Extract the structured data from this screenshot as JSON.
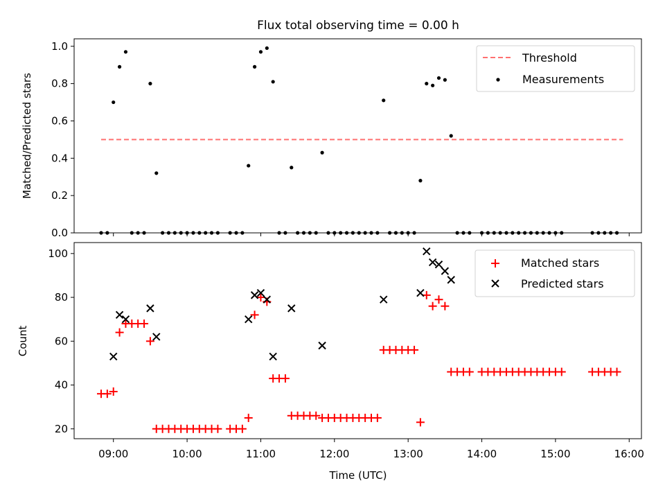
{
  "title": "Flux total observing time = 0.00 h",
  "colors": {
    "threshold": "#ff7070",
    "measurements": "#000000",
    "matched": "#ff0000",
    "predicted": "#000000"
  },
  "chart_data": [
    {
      "type": "scatter",
      "ylabel": "Matched/Predicted stars",
      "xlim": [
        "08:28",
        "16:10"
      ],
      "ylim": [
        0,
        1.04
      ],
      "y_ticks": [
        0.0,
        0.2,
        0.4,
        0.6,
        0.8,
        1.0
      ],
      "y_tick_labels": [
        "0.0",
        "0.2",
        "0.4",
        "0.6",
        "0.8",
        "1.0"
      ],
      "x_ticks": [
        "09:00",
        "10:00",
        "11:00",
        "12:00",
        "13:00",
        "14:00",
        "15:00",
        "16:00"
      ],
      "legend_position": "top-right",
      "legend": [
        "Threshold",
        "Measurements"
      ],
      "threshold": {
        "name": "Threshold",
        "value": 0.5,
        "x_range": [
          "08:50",
          "15:55"
        ]
      },
      "measurements": {
        "name": "Measurements",
        "points": [
          [
            "08:50",
            0
          ],
          [
            "08:55",
            0
          ],
          [
            "09:00",
            0.7
          ],
          [
            "09:05",
            0.89
          ],
          [
            "09:10",
            0.97
          ],
          [
            "09:15",
            0
          ],
          [
            "09:20",
            0
          ],
          [
            "09:25",
            0
          ],
          [
            "09:30",
            0.8
          ],
          [
            "09:35",
            0.32
          ],
          [
            "09:40",
            0
          ],
          [
            "09:45",
            0
          ],
          [
            "09:50",
            0
          ],
          [
            "09:55",
            0
          ],
          [
            "10:00",
            0
          ],
          [
            "10:05",
            0
          ],
          [
            "10:10",
            0
          ],
          [
            "10:15",
            0
          ],
          [
            "10:20",
            0
          ],
          [
            "10:25",
            0
          ],
          [
            "10:35",
            0
          ],
          [
            "10:40",
            0
          ],
          [
            "10:45",
            0
          ],
          [
            "10:50",
            0.36
          ],
          [
            "10:55",
            0.89
          ],
          [
            "11:00",
            0.97
          ],
          [
            "11:05",
            0.99
          ],
          [
            "11:10",
            0.81
          ],
          [
            "11:15",
            0
          ],
          [
            "11:20",
            0
          ],
          [
            "11:25",
            0.35
          ],
          [
            "11:30",
            0
          ],
          [
            "11:35",
            0
          ],
          [
            "11:40",
            0
          ],
          [
            "11:45",
            0
          ],
          [
            "11:50",
            0.43
          ],
          [
            "11:55",
            0
          ],
          [
            "12:00",
            0
          ],
          [
            "12:05",
            0
          ],
          [
            "12:10",
            0
          ],
          [
            "12:15",
            0
          ],
          [
            "12:20",
            0
          ],
          [
            "12:25",
            0
          ],
          [
            "12:30",
            0
          ],
          [
            "12:35",
            0
          ],
          [
            "12:40",
            0.71
          ],
          [
            "12:45",
            0
          ],
          [
            "12:50",
            0
          ],
          [
            "12:55",
            0
          ],
          [
            "13:00",
            0
          ],
          [
            "13:05",
            0
          ],
          [
            "13:10",
            0.28
          ],
          [
            "13:15",
            0.8
          ],
          [
            "13:20",
            0.79
          ],
          [
            "13:25",
            0.83
          ],
          [
            "13:30",
            0.82
          ],
          [
            "13:35",
            0.52
          ],
          [
            "13:40",
            0
          ],
          [
            "13:45",
            0
          ],
          [
            "13:50",
            0
          ],
          [
            "14:00",
            0
          ],
          [
            "14:05",
            0
          ],
          [
            "14:10",
            0
          ],
          [
            "14:15",
            0
          ],
          [
            "14:20",
            0
          ],
          [
            "14:25",
            0
          ],
          [
            "14:30",
            0
          ],
          [
            "14:35",
            0
          ],
          [
            "14:40",
            0
          ],
          [
            "14:45",
            0
          ],
          [
            "14:50",
            0
          ],
          [
            "14:55",
            0
          ],
          [
            "15:00",
            0
          ],
          [
            "15:05",
            0
          ],
          [
            "15:30",
            0
          ],
          [
            "15:35",
            0
          ],
          [
            "15:40",
            0
          ],
          [
            "15:45",
            0
          ],
          [
            "15:50",
            0
          ]
        ]
      }
    },
    {
      "type": "scatter",
      "ylabel": "Count",
      "xlabel": "Time (UTC)",
      "xlim": [
        "08:28",
        "16:10"
      ],
      "ylim": [
        15.5,
        105
      ],
      "y_ticks": [
        20,
        40,
        60,
        80,
        100
      ],
      "y_tick_labels": [
        "20",
        "40",
        "60",
        "80",
        "100"
      ],
      "x_ticks": [
        "09:00",
        "10:00",
        "11:00",
        "12:00",
        "13:00",
        "14:00",
        "15:00",
        "16:00"
      ],
      "x_tick_labels": [
        "09:00",
        "10:00",
        "11:00",
        "12:00",
        "13:00",
        "14:00",
        "15:00",
        "16:00"
      ],
      "legend_position": "top-right",
      "legend": [
        "Matched stars",
        "Predicted stars"
      ],
      "series": [
        {
          "name": "Matched stars",
          "marker": "+",
          "points": [
            [
              "08:50",
              36
            ],
            [
              "08:55",
              36
            ],
            [
              "09:00",
              37
            ],
            [
              "09:05",
              64
            ],
            [
              "09:10",
              68
            ],
            [
              "09:15",
              68
            ],
            [
              "09:20",
              68
            ],
            [
              "09:25",
              68
            ],
            [
              "09:30",
              60
            ],
            [
              "09:35",
              20
            ],
            [
              "09:40",
              20
            ],
            [
              "09:45",
              20
            ],
            [
              "09:50",
              20
            ],
            [
              "09:55",
              20
            ],
            [
              "10:00",
              20
            ],
            [
              "10:05",
              20
            ],
            [
              "10:10",
              20
            ],
            [
              "10:15",
              20
            ],
            [
              "10:20",
              20
            ],
            [
              "10:25",
              20
            ],
            [
              "10:35",
              20
            ],
            [
              "10:40",
              20
            ],
            [
              "10:45",
              20
            ],
            [
              "10:50",
              25
            ],
            [
              "10:55",
              72
            ],
            [
              "11:00",
              80
            ],
            [
              "11:05",
              78
            ],
            [
              "11:10",
              43
            ],
            [
              "11:15",
              43
            ],
            [
              "11:20",
              43
            ],
            [
              "11:25",
              26
            ],
            [
              "11:30",
              26
            ],
            [
              "11:35",
              26
            ],
            [
              "11:40",
              26
            ],
            [
              "11:45",
              26
            ],
            [
              "11:50",
              25
            ],
            [
              "11:55",
              25
            ],
            [
              "12:00",
              25
            ],
            [
              "12:05",
              25
            ],
            [
              "12:10",
              25
            ],
            [
              "12:15",
              25
            ],
            [
              "12:20",
              25
            ],
            [
              "12:25",
              25
            ],
            [
              "12:30",
              25
            ],
            [
              "12:35",
              25
            ],
            [
              "12:40",
              56
            ],
            [
              "12:45",
              56
            ],
            [
              "12:50",
              56
            ],
            [
              "12:55",
              56
            ],
            [
              "13:00",
              56
            ],
            [
              "13:05",
              56
            ],
            [
              "13:10",
              23
            ],
            [
              "13:15",
              81
            ],
            [
              "13:20",
              76
            ],
            [
              "13:25",
              79
            ],
            [
              "13:30",
              76
            ],
            [
              "13:35",
              46
            ],
            [
              "13:40",
              46
            ],
            [
              "13:45",
              46
            ],
            [
              "13:50",
              46
            ],
            [
              "14:00",
              46
            ],
            [
              "14:05",
              46
            ],
            [
              "14:10",
              46
            ],
            [
              "14:15",
              46
            ],
            [
              "14:20",
              46
            ],
            [
              "14:25",
              46
            ],
            [
              "14:30",
              46
            ],
            [
              "14:35",
              46
            ],
            [
              "14:40",
              46
            ],
            [
              "14:45",
              46
            ],
            [
              "14:50",
              46
            ],
            [
              "14:55",
              46
            ],
            [
              "15:00",
              46
            ],
            [
              "15:05",
              46
            ],
            [
              "15:30",
              46
            ],
            [
              "15:35",
              46
            ],
            [
              "15:40",
              46
            ],
            [
              "15:45",
              46
            ],
            [
              "15:50",
              46
            ]
          ]
        },
        {
          "name": "Predicted stars",
          "marker": "x",
          "points": [
            [
              "09:00",
              53
            ],
            [
              "09:05",
              72
            ],
            [
              "09:10",
              70
            ],
            [
              "09:30",
              75
            ],
            [
              "09:35",
              62
            ],
            [
              "10:50",
              70
            ],
            [
              "10:55",
              81
            ],
            [
              "11:00",
              82
            ],
            [
              "11:05",
              79
            ],
            [
              "11:10",
              53
            ],
            [
              "11:25",
              75
            ],
            [
              "11:50",
              58
            ],
            [
              "12:40",
              79
            ],
            [
              "13:10",
              82
            ],
            [
              "13:15",
              101
            ],
            [
              "13:20",
              96
            ],
            [
              "13:25",
              95
            ],
            [
              "13:30",
              92
            ],
            [
              "13:35",
              88
            ]
          ]
        }
      ]
    }
  ]
}
